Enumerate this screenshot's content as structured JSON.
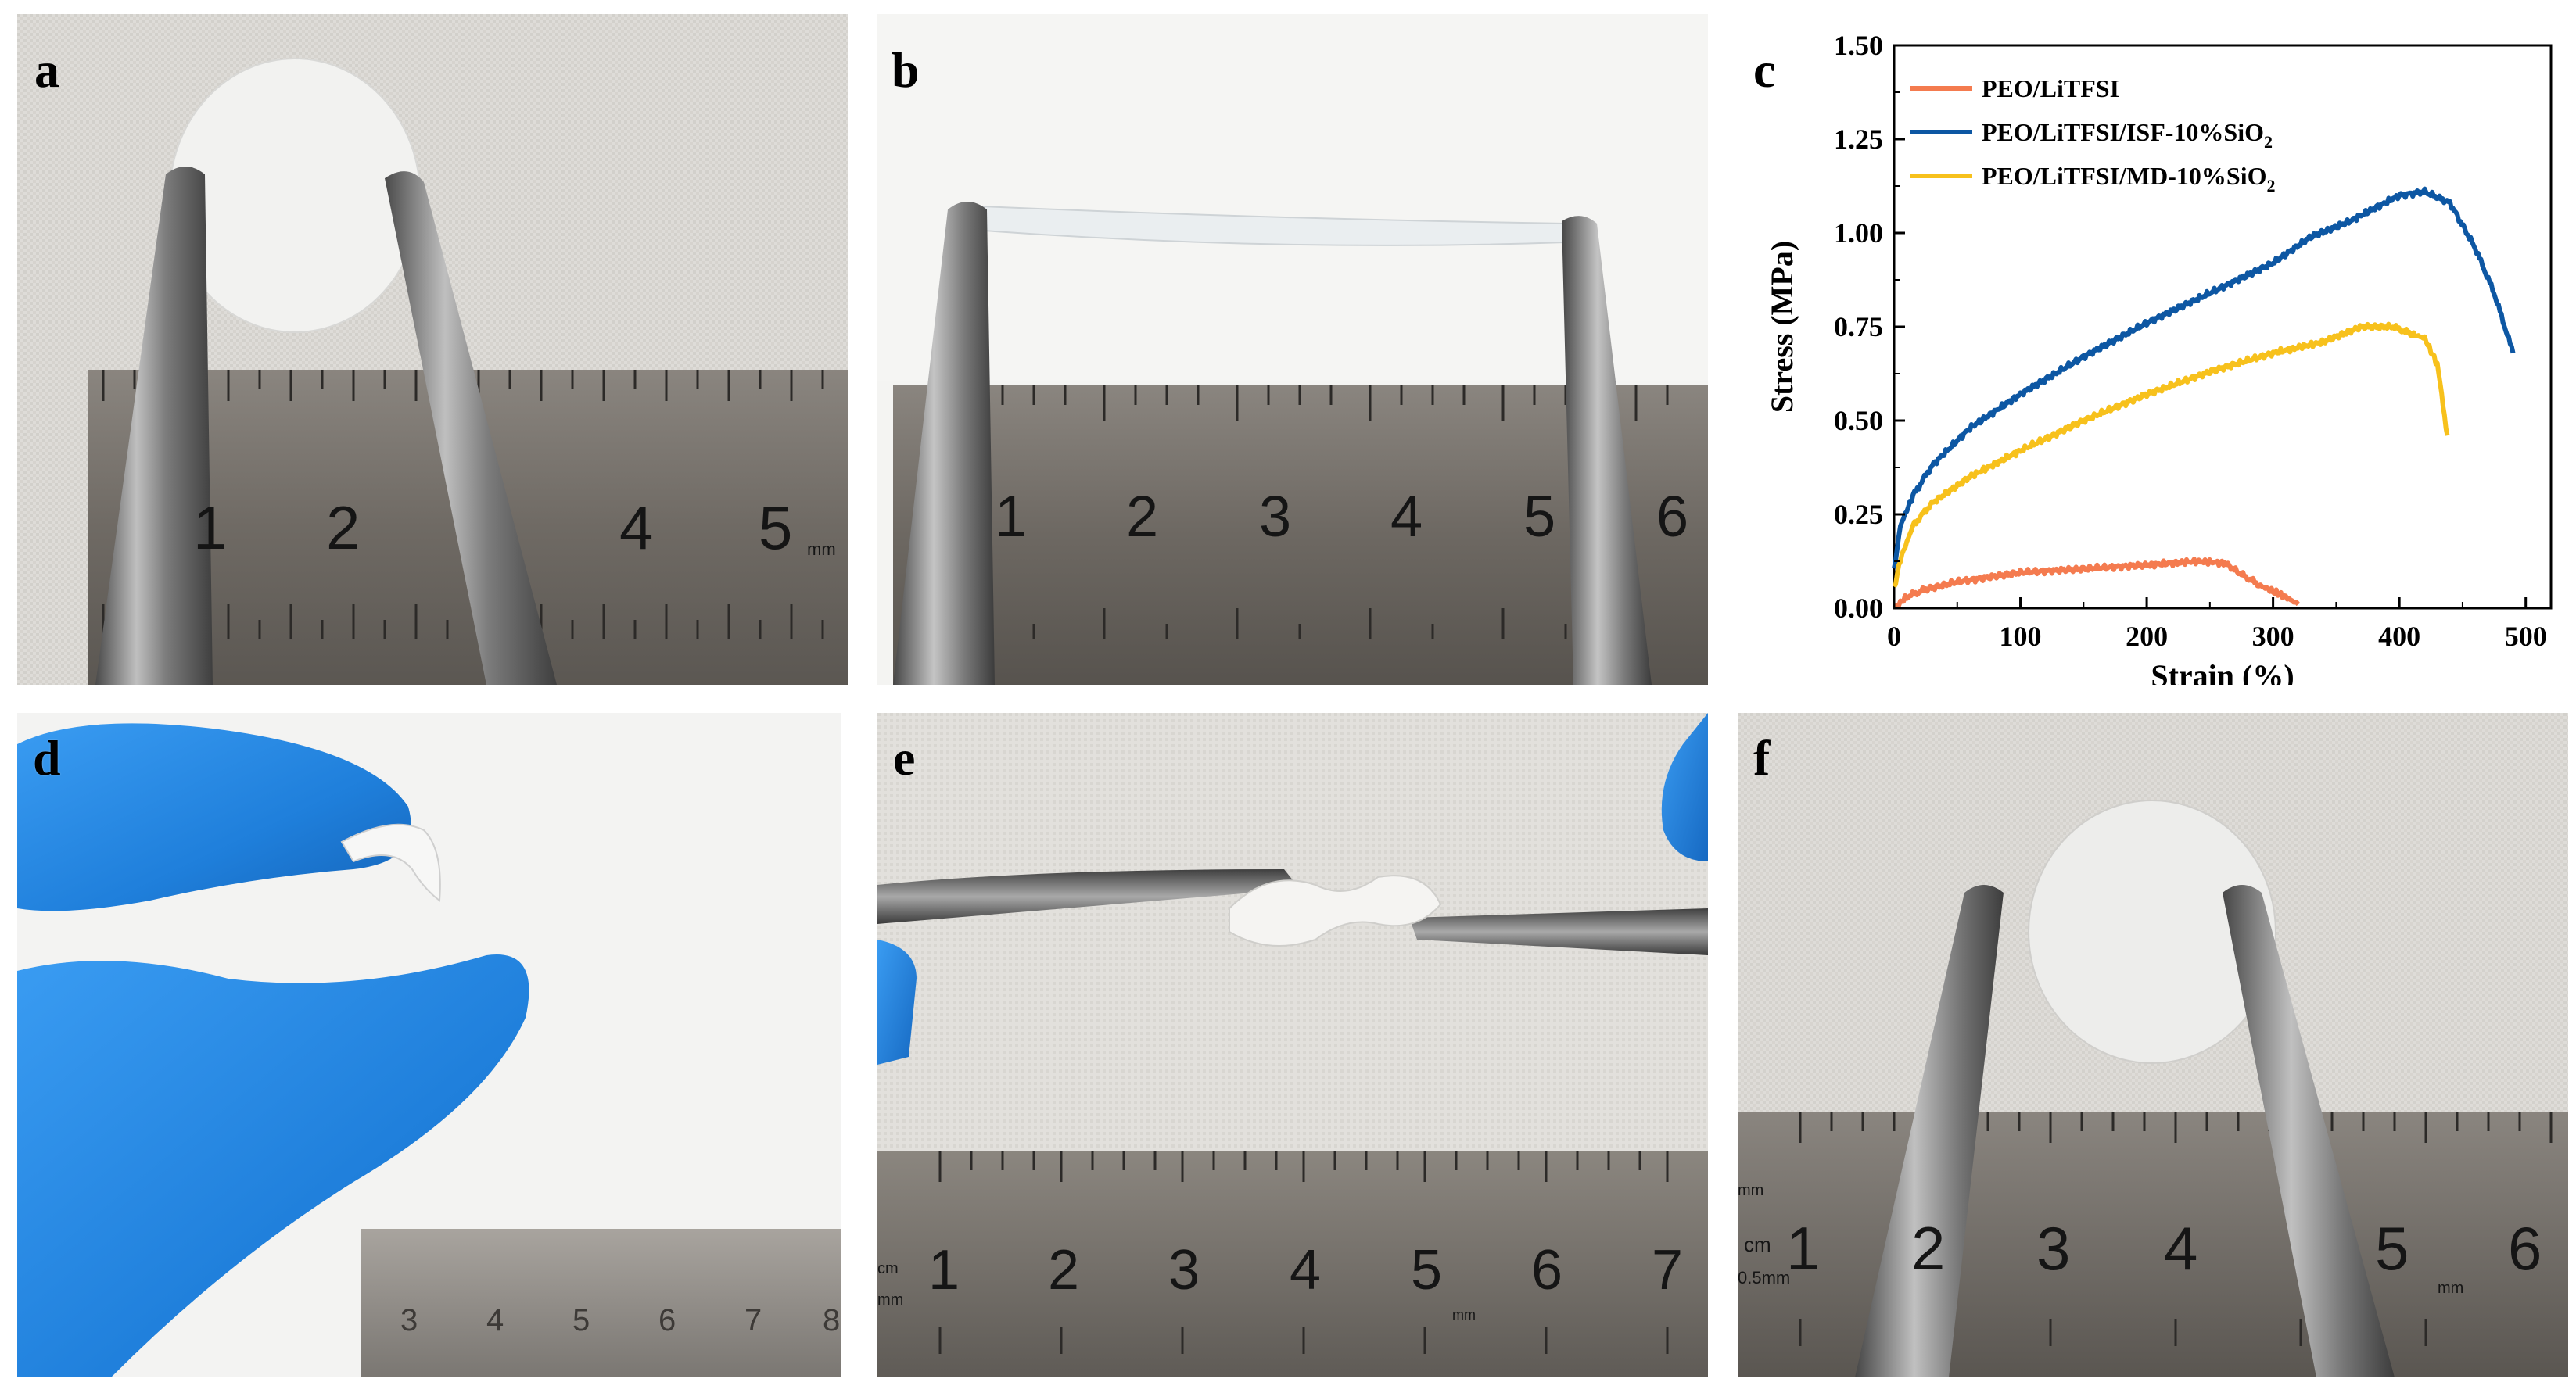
{
  "panels": {
    "a": {
      "label": "a"
    },
    "b": {
      "label": "b"
    },
    "c": {
      "label": "c"
    },
    "d": {
      "label": "d"
    },
    "e": {
      "label": "e"
    },
    "f": {
      "label": "f"
    }
  },
  "rulers": {
    "a": {
      "numbers": [
        "1",
        "2",
        "4",
        "5"
      ],
      "unit": "mm"
    },
    "b": {
      "numbers": [
        "1",
        "2",
        "3",
        "4",
        "5",
        "6"
      ]
    },
    "d": {
      "numbers": [
        "3",
        "4",
        "5",
        "6",
        "7",
        "8"
      ]
    },
    "e": {
      "numbers": [
        "1",
        "2",
        "3",
        "4",
        "5",
        "6",
        "7"
      ],
      "unit_cm": "cm",
      "unit_mm": "mm",
      "unit_mm2": "mm"
    },
    "f": {
      "numbers": [
        "1",
        "2",
        "3",
        "4",
        "5",
        "6"
      ],
      "unit_cm": "cm",
      "unit_mm": "mm",
      "unit_05": "0.5mm",
      "unit_mm2": "mm"
    }
  },
  "colors": {
    "peo_litfsi": "#f47b4f",
    "isf": "#0d57a3",
    "md": "#f7c11c",
    "glove": "#2a8fe8",
    "fabric": "#dcdad6",
    "ruler": "#77716b"
  },
  "chart_data": {
    "type": "line",
    "xlabel": "Strain (%)",
    "ylabel": "Stress (MPa)",
    "xlim": [
      0,
      520
    ],
    "ylim": [
      0,
      1.5
    ],
    "xticks": [
      "0",
      "100",
      "200",
      "300",
      "400",
      "500"
    ],
    "yticks": [
      "0.00",
      "0.25",
      "0.50",
      "0.75",
      "1.00",
      "1.25",
      "1.50"
    ],
    "legend_position": "top-left",
    "series": [
      {
        "name": "PEO/LiTFSI",
        "color": "#f47b4f",
        "x": [
          0,
          10,
          25,
          50,
          100,
          150,
          200,
          240,
          262,
          275,
          290,
          300,
          310,
          320
        ],
        "y": [
          0,
          0.03,
          0.05,
          0.07,
          0.095,
          0.105,
          0.115,
          0.125,
          0.12,
          0.09,
          0.06,
          0.045,
          0.03,
          0.01
        ]
      },
      {
        "name": "PEO/LiTFSI/ISF-10%SiO",
        "name_subscript": "2",
        "color": "#0d57a3",
        "x": [
          0,
          5,
          15,
          30,
          60,
          100,
          150,
          200,
          250,
          300,
          330,
          360,
          400,
          420,
          440,
          460,
          475,
          490
        ],
        "y": [
          0.1,
          0.22,
          0.3,
          0.38,
          0.48,
          0.57,
          0.67,
          0.76,
          0.84,
          0.92,
          0.99,
          1.03,
          1.1,
          1.11,
          1.08,
          0.96,
          0.84,
          0.68
        ]
      },
      {
        "name": "PEO/LiTFSI/MD-10%SiO",
        "name_subscript": "2",
        "color": "#f7c11c",
        "x": [
          0,
          5,
          15,
          30,
          60,
          100,
          150,
          200,
          250,
          300,
          340,
          370,
          395,
          410,
          420,
          430,
          438
        ],
        "y": [
          0.05,
          0.13,
          0.22,
          0.28,
          0.35,
          0.42,
          0.5,
          0.57,
          0.63,
          0.68,
          0.71,
          0.75,
          0.75,
          0.73,
          0.72,
          0.65,
          0.46
        ]
      }
    ]
  }
}
